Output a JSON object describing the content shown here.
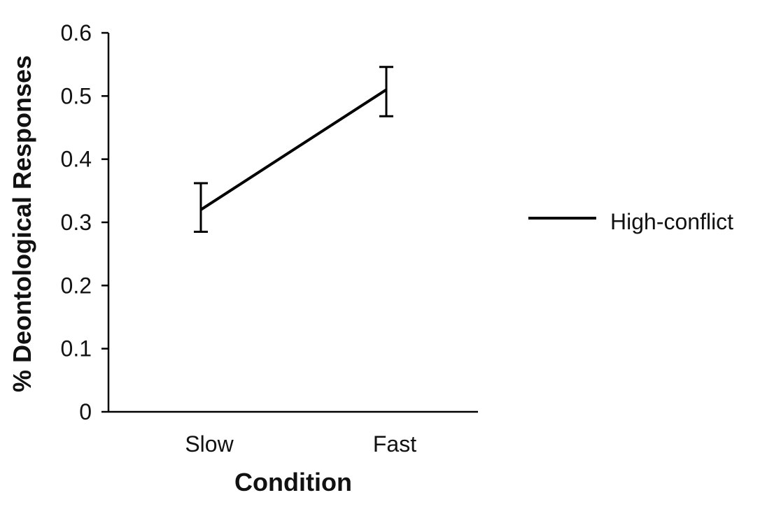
{
  "chart_data": {
    "type": "line",
    "title": "",
    "xlabel": "Condition",
    "ylabel": "% Deontological Responses",
    "categories": [
      "Slow",
      "Fast"
    ],
    "ylim": [
      0,
      0.6
    ],
    "y_ticks": [
      "0",
      "0.1",
      "0.2",
      "0.3",
      "0.4",
      "0.5",
      "0.6"
    ],
    "grid": false,
    "legend_position": "right",
    "series": [
      {
        "name": "High-conflict",
        "values": [
          0.32,
          0.51
        ],
        "error_low": [
          0.285,
          0.468
        ],
        "error_high": [
          0.362,
          0.546
        ],
        "color": "#000000"
      }
    ]
  }
}
